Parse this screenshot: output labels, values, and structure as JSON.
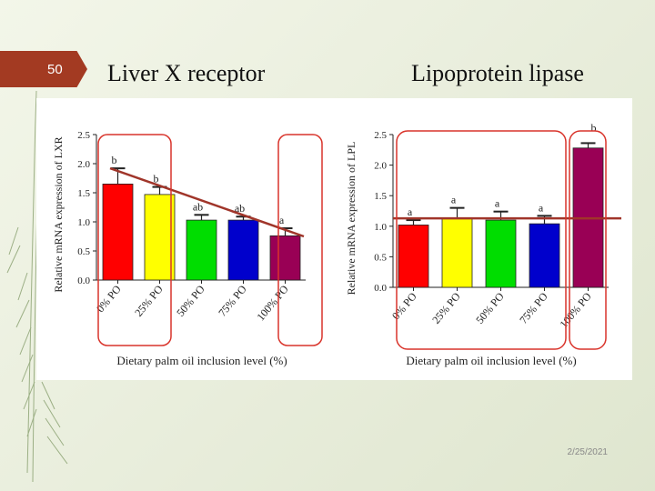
{
  "slide": {
    "number": "50",
    "date": "2/25/2021"
  },
  "titles": {
    "left": "Liver X receptor",
    "right": "Lipoprotein lipase"
  },
  "colors": {
    "accent": "#a33a22",
    "trend_line": "#a0352a",
    "highlight_box": "#d9342b",
    "bars": [
      "#ff0000",
      "#ffff00",
      "#00dd00",
      "#0000cc",
      "#990055"
    ]
  },
  "chart_data": [
    {
      "type": "bar",
      "title": "",
      "xlabel": "Dietary palm oil inclusion level (%)",
      "ylabel": "Relative mRNA expression of LXR",
      "categories": [
        "0% PO",
        "25% PO",
        "50% PO",
        "75% PO",
        "100% PO"
      ],
      "values": [
        1.65,
        1.47,
        1.03,
        1.03,
        0.76
      ],
      "errors": [
        0.27,
        0.13,
        0.09,
        0.06,
        0.13
      ],
      "letters": [
        "b",
        "b",
        "ab",
        "ab",
        "a"
      ],
      "ylim": [
        0,
        2.5
      ],
      "yticks": [
        "0.0",
        "0.5",
        "1.0",
        "1.5",
        "2.0",
        "2.5"
      ],
      "trend": "decreasing line from 0% PO to 100% PO"
    },
    {
      "type": "bar",
      "title": "",
      "xlabel": "Dietary palm oil inclusion level (%)",
      "ylabel": "Relative mRNA expression of LPL",
      "categories": [
        "0% PO",
        "25% PO",
        "50% PO",
        "75% PO",
        "100% PO"
      ],
      "values": [
        1.02,
        1.13,
        1.1,
        1.04,
        2.28
      ],
      "errors": [
        0.08,
        0.17,
        0.14,
        0.13,
        0.08
      ],
      "letters": [
        "a",
        "a",
        "a",
        "a",
        "b"
      ],
      "ylim": [
        0,
        2.5
      ],
      "yticks": [
        "0.0",
        "0.5",
        "1.0",
        "1.5",
        "2.0",
        "2.5"
      ],
      "reference_level": 1.13
    }
  ]
}
